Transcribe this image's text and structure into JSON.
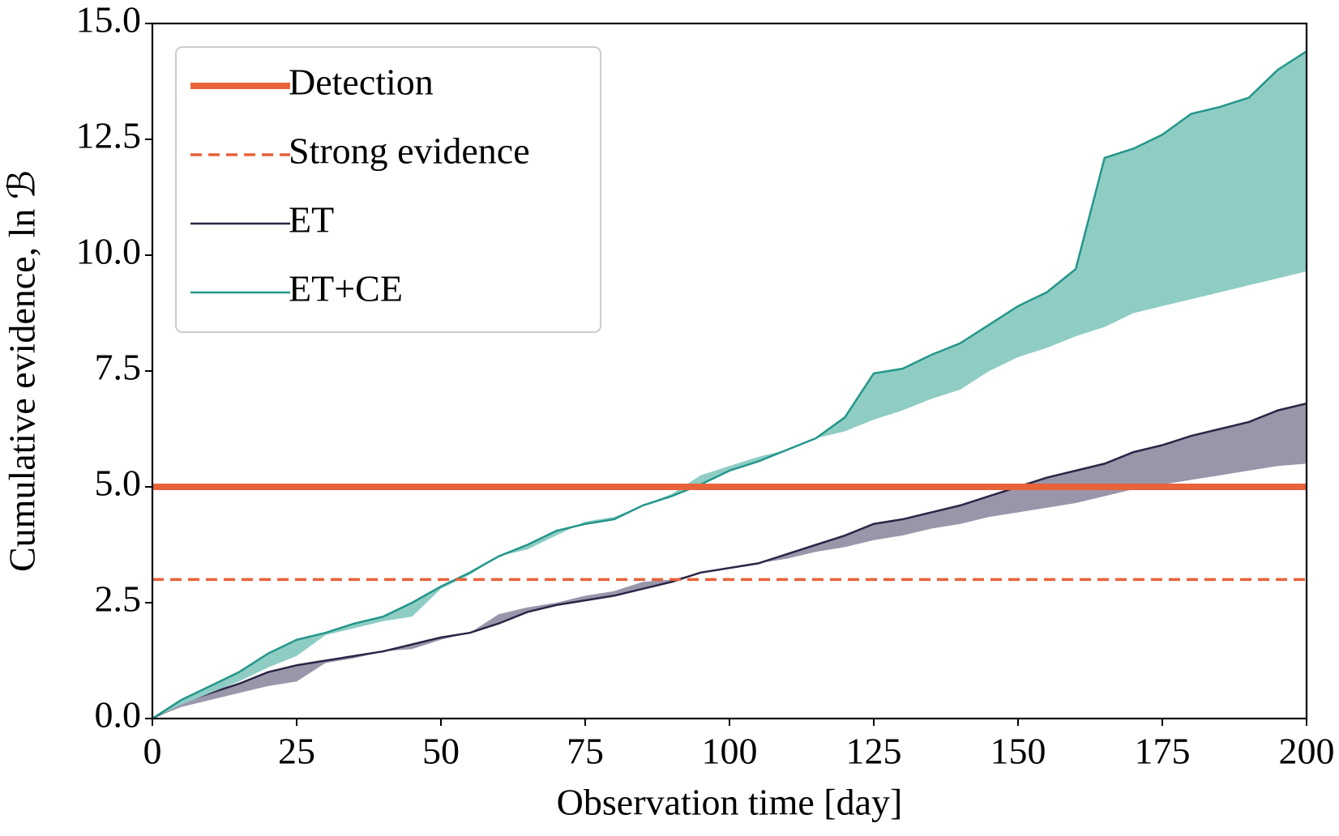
{
  "chart_data": {
    "type": "line",
    "xlabel": "Observation time [day]",
    "ylabel": "Cumulative evidence, ln ℬ",
    "xlim": [
      0,
      200
    ],
    "ylim": [
      0,
      15
    ],
    "xticks": [
      0,
      25,
      50,
      75,
      100,
      125,
      150,
      175,
      200
    ],
    "yticks": [
      {
        "value": 0,
        "label": "0.0"
      },
      2.5,
      {
        "value": 5,
        "label": "5.0"
      },
      7.5,
      {
        "value": 10,
        "label": "10.0"
      },
      12.5,
      {
        "value": 15,
        "label": "15.0"
      }
    ],
    "legend": "upper left",
    "hlines": [
      {
        "name": "Detection",
        "value": 5,
        "color": "#e8623a",
        "style": "solid"
      },
      {
        "name": "Strong evidence",
        "value": 3,
        "color": "#e8623a",
        "style": "dashed"
      }
    ],
    "x": [
      0,
      5,
      10,
      15,
      20,
      25,
      30,
      35,
      40,
      45,
      50,
      55,
      60,
      65,
      70,
      75,
      80,
      85,
      90,
      95,
      100,
      105,
      110,
      115,
      120,
      125,
      130,
      135,
      140,
      145,
      150,
      155,
      160,
      165,
      170,
      175,
      180,
      185,
      190,
      195,
      200
    ],
    "series": [
      {
        "name": "ET",
        "color": "#2b2546",
        "band_color": "#9a96aa",
        "values": [
          0,
          0.35,
          0.55,
          0.75,
          1.0,
          1.15,
          1.25,
          1.35,
          1.45,
          1.6,
          1.75,
          1.85,
          2.05,
          2.3,
          2.45,
          2.55,
          2.65,
          2.8,
          2.95,
          3.15,
          3.25,
          3.35,
          3.55,
          3.75,
          3.95,
          4.2,
          4.3,
          4.45,
          4.6,
          4.8,
          5.0,
          5.2,
          5.35,
          5.5,
          5.75,
          5.9,
          6.1,
          6.25,
          6.4,
          6.65,
          6.8
        ],
        "lower": [
          0,
          0.25,
          0.4,
          0.55,
          0.7,
          0.8,
          1.2,
          1.3,
          1.45,
          1.5,
          1.7,
          1.85,
          2.25,
          2.4,
          2.5,
          2.65,
          2.75,
          2.95,
          3.0,
          3.15,
          3.25,
          3.35,
          3.45,
          3.6,
          3.7,
          3.85,
          3.95,
          4.1,
          4.2,
          4.35,
          4.45,
          4.55,
          4.65,
          4.8,
          4.95,
          5.05,
          5.15,
          5.25,
          5.35,
          5.45,
          5.5
        ]
      },
      {
        "name": "ET+CE",
        "color": "#23968a",
        "band_color": "#8fcdc4",
        "values": [
          0,
          0.4,
          0.7,
          1.0,
          1.4,
          1.7,
          1.85,
          2.05,
          2.2,
          2.5,
          2.85,
          3.15,
          3.5,
          3.75,
          4.05,
          4.2,
          4.3,
          4.6,
          4.8,
          5.05,
          5.35,
          5.55,
          5.8,
          6.05,
          6.5,
          7.45,
          7.55,
          7.85,
          8.1,
          8.5,
          8.9,
          9.2,
          9.7,
          12.1,
          12.3,
          12.6,
          13.05,
          13.2,
          13.4,
          14.0,
          14.4
        ],
        "lower": [
          0,
          0.3,
          0.55,
          0.8,
          1.1,
          1.35,
          1.8,
          1.95,
          2.1,
          2.2,
          2.8,
          3.1,
          3.5,
          3.65,
          3.95,
          4.25,
          4.35,
          4.6,
          4.85,
          5.25,
          5.45,
          5.65,
          5.8,
          6.05,
          6.2,
          6.45,
          6.65,
          6.9,
          7.1,
          7.5,
          7.8,
          8.0,
          8.25,
          8.45,
          8.75,
          8.9,
          9.05,
          9.2,
          9.35,
          9.5,
          9.65
        ]
      }
    ]
  }
}
